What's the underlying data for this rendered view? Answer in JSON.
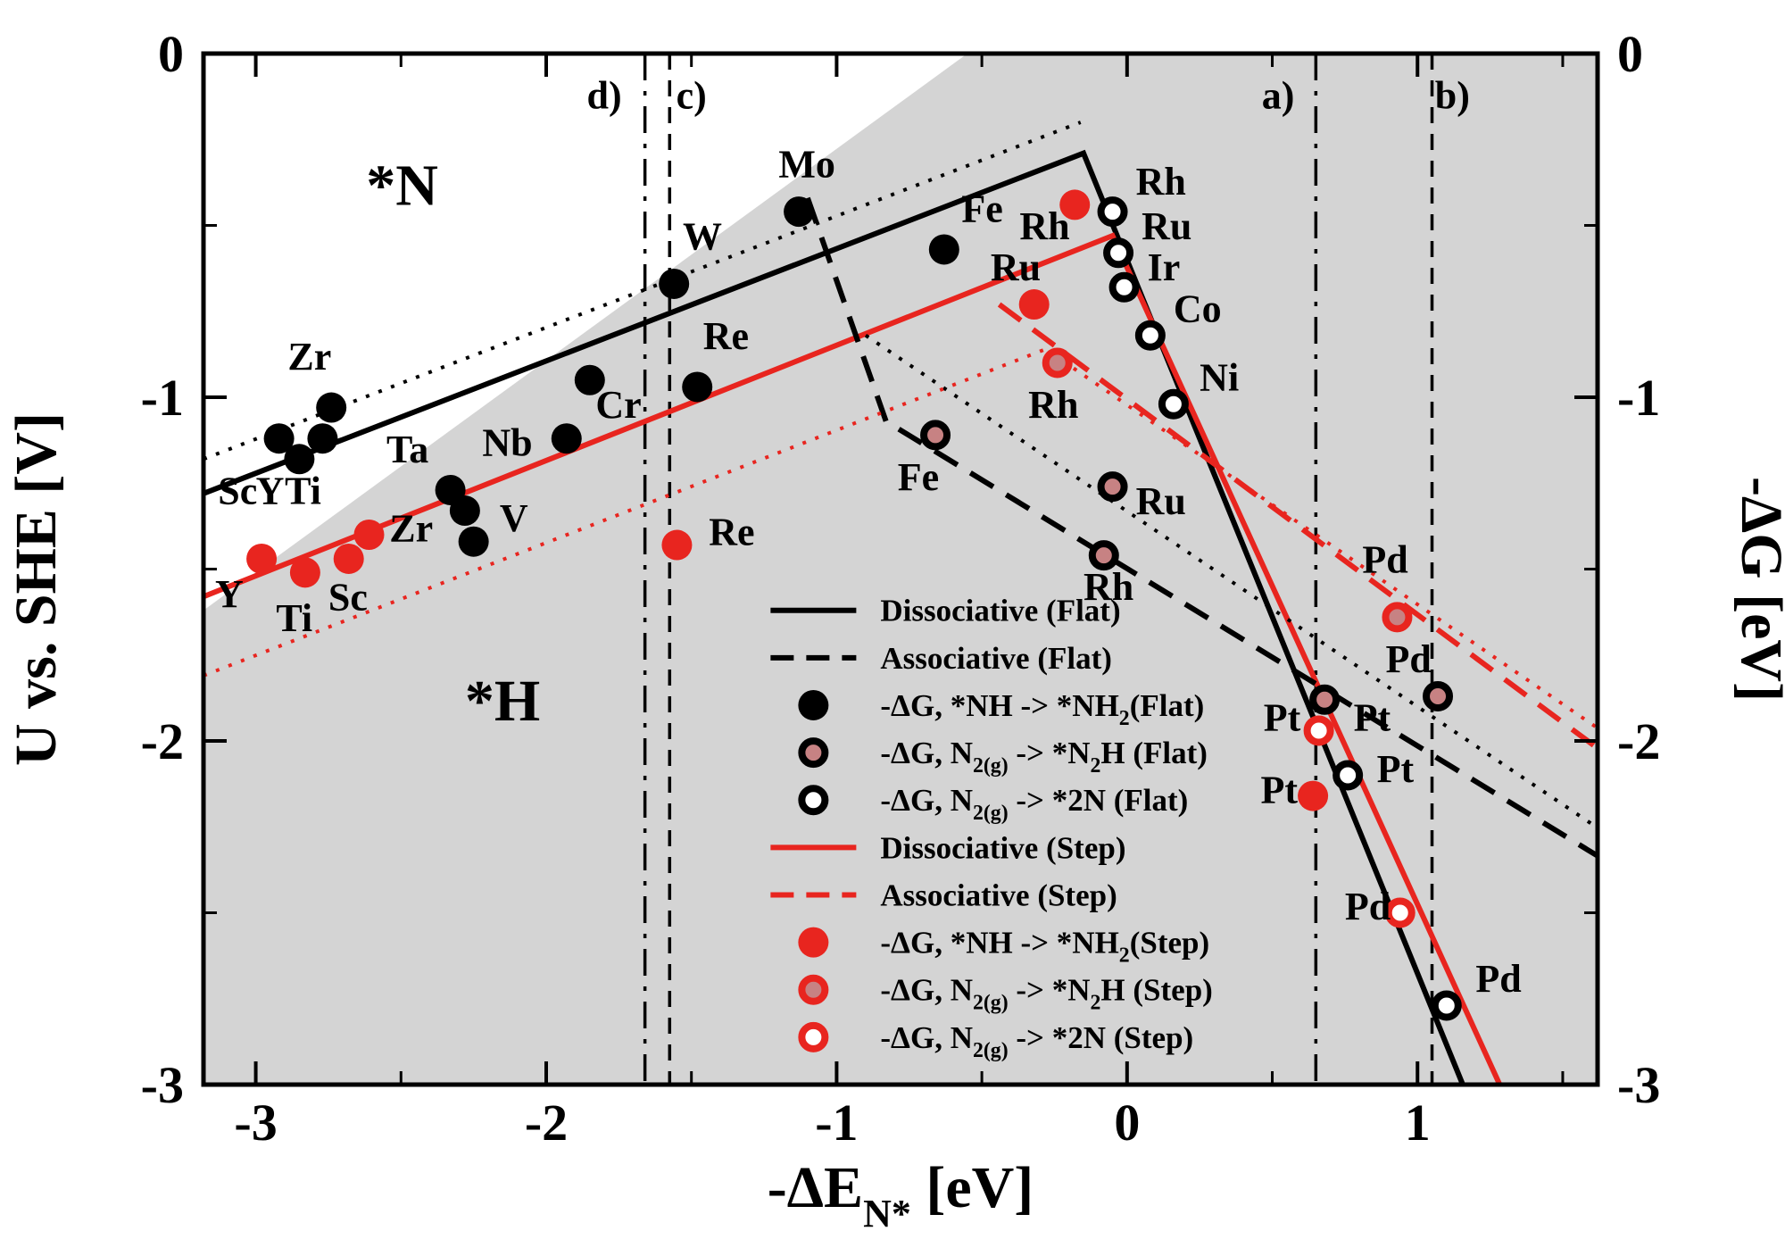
{
  "colors": {
    "black": "#000000",
    "red": "#e8251f",
    "pink": "#c78283",
    "shaded": "#d4d4d4",
    "blue": "#3040a8",
    "white": "#ffffff"
  },
  "chart_data": {
    "type": "scatter",
    "title": "",
    "xlabel": "-ΔE_N* [eV]",
    "xlabel_parts": {
      "pre": "-ΔE",
      "sub": "N*",
      "post": " [eV]"
    },
    "ylabel_left": "U vs. SHE [V]",
    "ylabel_right": "-ΔG [eV]",
    "xlim": [
      -3.18,
      1.62
    ],
    "ylim": [
      -3,
      0
    ],
    "xticks": [
      -3,
      -2,
      -1,
      0,
      1
    ],
    "xminor": [
      -2.5,
      -1.5,
      -0.5,
      0.5,
      1.5
    ],
    "yticks": [
      0,
      -1,
      -2,
      -3
    ],
    "yminor": [
      -0.5,
      -1.5,
      -2.5
    ],
    "shaded_region": {
      "white_polygon": [
        [
          -3.18,
          0
        ],
        [
          -0.55,
          0
        ],
        [
          -3.18,
          -1.62
        ]
      ]
    },
    "region_labels": [
      {
        "text": "*N",
        "x": -2.62,
        "y": -0.44
      },
      {
        "text": "*H",
        "x": -2.28,
        "y": -1.94
      }
    ],
    "vlines": [
      {
        "label": "d)",
        "x": -1.66,
        "style": "dashdot",
        "label_x": -1.8,
        "label_y": -0.16
      },
      {
        "label": "c)",
        "x": -1.575,
        "style": "dashed",
        "label_x": -1.5,
        "label_y": -0.16
      },
      {
        "label": "a)",
        "x": 0.65,
        "style": "dashdot",
        "label_x": 0.52,
        "label_y": -0.16
      },
      {
        "label": "b)",
        "x": 1.05,
        "style": "dashed",
        "label_x": 1.12,
        "label_y": -0.16
      }
    ],
    "lines": [
      {
        "name": "dissociative-flat",
        "color": "black",
        "style": "solid",
        "points": [
          [
            -3.18,
            -1.28
          ],
          [
            -0.15,
            -0.29
          ],
          [
            1.18,
            -3.05
          ]
        ]
      },
      {
        "name": "dissociative-step",
        "color": "red",
        "style": "solid",
        "points": [
          [
            -3.18,
            -1.58
          ],
          [
            -0.05,
            -0.53
          ],
          [
            1.31,
            -3.05
          ]
        ]
      },
      {
        "name": "associative-flat",
        "color": "black",
        "style": "dashed",
        "points": [
          [
            -1.1,
            -0.42
          ],
          [
            -0.83,
            -1.07
          ],
          [
            1.65,
            -2.35
          ]
        ]
      },
      {
        "name": "associative-step",
        "color": "red",
        "style": "dashed",
        "points": [
          [
            -0.44,
            -0.73
          ],
          [
            1.65,
            -2.04
          ]
        ]
      },
      {
        "name": "scaling-flat-left",
        "color": "black",
        "style": "dotted",
        "points": [
          [
            -3.18,
            -1.18
          ],
          [
            -0.16,
            -0.2
          ]
        ]
      },
      {
        "name": "scaling-flat-right",
        "color": "black",
        "style": "dotted",
        "points": [
          [
            -0.9,
            -0.82
          ],
          [
            1.65,
            -2.27
          ]
        ]
      },
      {
        "name": "scaling-step",
        "color": "red",
        "style": "dotted",
        "points": [
          [
            -3.18,
            -1.81
          ],
          [
            -0.28,
            -0.86
          ],
          [
            1.65,
            -1.98
          ]
        ]
      }
    ],
    "series": [
      {
        "name": "flat-nh2",
        "marker": "filled",
        "color": "black",
        "points": [
          {
            "el": "Sc",
            "x": -2.92,
            "y": -1.12
          },
          {
            "el": "Y",
            "x": -2.85,
            "y": -1.18
          },
          {
            "el": "Ti",
            "x": -2.77,
            "y": -1.12
          },
          {
            "el": "Zr",
            "x": -2.74,
            "y": -1.03
          },
          {
            "el": "Ta",
            "x": -2.33,
            "y": -1.27
          },
          {
            "el": "Nb",
            "x": -2.28,
            "y": -1.33
          },
          {
            "el": "V",
            "x": -2.25,
            "y": -1.42
          },
          {
            "el": "",
            "x": -1.85,
            "y": -0.95
          },
          {
            "el": "Cr",
            "x": -1.93,
            "y": -1.12
          },
          {
            "el": "W",
            "x": -1.56,
            "y": -0.67
          },
          {
            "el": "Re",
            "x": -1.48,
            "y": -0.97
          },
          {
            "el": "Mo",
            "x": -1.13,
            "y": -0.46
          },
          {
            "el": "Fe",
            "x": -0.63,
            "y": -0.57
          }
        ]
      },
      {
        "name": "flat-n2h",
        "marker": "ring-pink",
        "color": "black",
        "points": [
          {
            "el": "Fe",
            "x": -0.66,
            "y": -1.11
          },
          {
            "el": "Ru",
            "x": -0.05,
            "y": -1.26
          },
          {
            "el": "Rh",
            "x": -0.08,
            "y": -1.46
          },
          {
            "el": "Pt",
            "x": 0.68,
            "y": -1.88
          },
          {
            "el": "Pd",
            "x": 1.07,
            "y": -1.87
          }
        ]
      },
      {
        "name": "flat-2n",
        "marker": "ring-open",
        "color": "black",
        "points": [
          {
            "el": "Rh",
            "x": -0.05,
            "y": -0.46
          },
          {
            "el": "Ru",
            "x": -0.03,
            "y": -0.58
          },
          {
            "el": "Ir",
            "x": -0.01,
            "y": -0.68
          },
          {
            "el": "Co",
            "x": 0.08,
            "y": -0.82
          },
          {
            "el": "Ni",
            "x": 0.16,
            "y": -1.02
          },
          {
            "el": "Pt",
            "x": 0.76,
            "y": -2.1
          },
          {
            "el": "Pd",
            "x": 1.1,
            "y": -2.77
          }
        ]
      },
      {
        "name": "step-nh2",
        "marker": "filled",
        "color": "red",
        "points": [
          {
            "el": "Y",
            "x": -2.98,
            "y": -1.47
          },
          {
            "el": "Ti",
            "x": -2.83,
            "y": -1.51
          },
          {
            "el": "Sc",
            "x": -2.68,
            "y": -1.47
          },
          {
            "el": "Zr",
            "x": -2.61,
            "y": -1.4
          },
          {
            "el": "Re",
            "x": -1.55,
            "y": -1.43
          },
          {
            "el": "Ru",
            "x": -0.32,
            "y": -0.73
          },
          {
            "el": "Rh",
            "x": -0.18,
            "y": -0.44
          },
          {
            "el": "Pt",
            "x": 0.64,
            "y": -2.16
          }
        ]
      },
      {
        "name": "step-n2h",
        "marker": "ring-pink",
        "color": "red",
        "points": [
          {
            "el": "Rh",
            "x": -0.24,
            "y": -0.9
          },
          {
            "el": "Pd",
            "x": 0.93,
            "y": -1.64
          }
        ]
      },
      {
        "name": "step-2n",
        "marker": "ring-open",
        "color": "red",
        "points": [
          {
            "el": "Pt",
            "x": 0.66,
            "y": -1.97
          },
          {
            "el": "Pd",
            "x": 0.94,
            "y": -2.5
          }
        ]
      }
    ],
    "annotations": [
      {
        "text": "Sc",
        "x": -3.13,
        "y": -1.31,
        "color": "black"
      },
      {
        "text": "Y",
        "x": -3.0,
        "y": -1.31,
        "color": "black"
      },
      {
        "text": "Ti",
        "x": -2.9,
        "y": -1.31,
        "color": "black"
      },
      {
        "text": "Zr",
        "x": -2.89,
        "y": -0.92,
        "color": "black"
      },
      {
        "text": "Ta",
        "x": -2.55,
        "y": -1.19,
        "color": "black"
      },
      {
        "text": "Nb",
        "x": -2.22,
        "y": -1.17,
        "color": "black"
      },
      {
        "text": "V",
        "x": -2.16,
        "y": -1.39,
        "color": "black"
      },
      {
        "text": "Cr",
        "x": -1.83,
        "y": -1.06,
        "color": "black"
      },
      {
        "text": "W",
        "x": -1.53,
        "y": -0.57,
        "color": "black"
      },
      {
        "text": "Re",
        "x": -1.46,
        "y": -0.86,
        "color": "black"
      },
      {
        "text": "Mo",
        "x": -1.2,
        "y": -0.36,
        "color": "black"
      },
      {
        "text": "Fe",
        "x": -0.57,
        "y": -0.49,
        "color": "black"
      },
      {
        "text": "Rh",
        "x": 0.03,
        "y": -0.41,
        "color": "black"
      },
      {
        "text": "Ru",
        "x": 0.05,
        "y": -0.54,
        "color": "black"
      },
      {
        "text": "Ir",
        "x": 0.07,
        "y": -0.66,
        "color": "black"
      },
      {
        "text": "Co",
        "x": 0.16,
        "y": -0.78,
        "color": "black"
      },
      {
        "text": "Ni",
        "x": 0.25,
        "y": -0.98,
        "color": "black"
      },
      {
        "text": "Fe",
        "x": -0.79,
        "y": -1.27,
        "color": "black"
      },
      {
        "text": "Ru",
        "x": 0.03,
        "y": -1.34,
        "color": "black"
      },
      {
        "text": "Rh",
        "x": -0.15,
        "y": -1.59,
        "color": "black"
      },
      {
        "text": "Pd",
        "x": 0.89,
        "y": -1.8,
        "color": "black"
      },
      {
        "text": "Pt",
        "x": 0.78,
        "y": -1.97,
        "color": "black"
      },
      {
        "text": "Pt",
        "x": 0.86,
        "y": -2.12,
        "color": "black"
      },
      {
        "text": "Pd",
        "x": 1.2,
        "y": -2.73,
        "color": "black"
      },
      {
        "text": "Y",
        "x": -3.14,
        "y": -1.61,
        "color": "red"
      },
      {
        "text": "Ti",
        "x": -2.93,
        "y": -1.68,
        "color": "red"
      },
      {
        "text": "Sc",
        "x": -2.75,
        "y": -1.62,
        "color": "red"
      },
      {
        "text": "Zr",
        "x": -2.54,
        "y": -1.42,
        "color": "red"
      },
      {
        "text": "Re",
        "x": -1.44,
        "y": -1.43,
        "color": "red"
      },
      {
        "text": "Rh",
        "x": -0.37,
        "y": -0.54,
        "color": "red"
      },
      {
        "text": "Ru",
        "x": -0.47,
        "y": -0.66,
        "color": "red"
      },
      {
        "text": "Rh",
        "x": -0.34,
        "y": -1.06,
        "color": "red"
      },
      {
        "text": "Pd",
        "x": 0.81,
        "y": -1.51,
        "color": "red"
      },
      {
        "text": "Pt",
        "x": 0.47,
        "y": -1.97,
        "color": "red"
      },
      {
        "text": "Pt",
        "x": 0.46,
        "y": -2.18,
        "color": "red"
      },
      {
        "text": "Pd",
        "x": 0.75,
        "y": -2.52,
        "color": "red"
      }
    ],
    "legend": {
      "marker_x": -1.08,
      "y_start": -1.62,
      "dy": 0.138,
      "items": [
        {
          "type": "line-solid",
          "color": "black",
          "label": "Dissociative (Flat)"
        },
        {
          "type": "line-dashed",
          "color": "black",
          "label": "Associative (Flat)"
        },
        {
          "type": "marker-filled",
          "color": "black",
          "label": "-ΔG, *NH -> *NH_{2}(Flat)"
        },
        {
          "type": "marker-ring-pink",
          "color": "black",
          "label": "-ΔG, N_{2(g)} -> *N_{2}H (Flat)"
        },
        {
          "type": "marker-ring-open",
          "color": "black",
          "label": "-ΔG, N_{2(g)} -> *2N (Flat)"
        },
        {
          "type": "line-solid",
          "color": "red",
          "label": "Dissociative (Step)"
        },
        {
          "type": "line-dashed",
          "color": "red",
          "label": "Associative (Step)"
        },
        {
          "type": "marker-filled",
          "color": "red",
          "label": "-ΔG, *NH -> *NH_{2}(Step)"
        },
        {
          "type": "marker-ring-pink",
          "color": "red",
          "label": "-ΔG, N_{2(g)} -> *N_{2}H (Step)"
        },
        {
          "type": "marker-ring-open",
          "color": "red",
          "label": "-ΔG, N_{2(g)} -> *2N (Step)"
        }
      ]
    }
  }
}
